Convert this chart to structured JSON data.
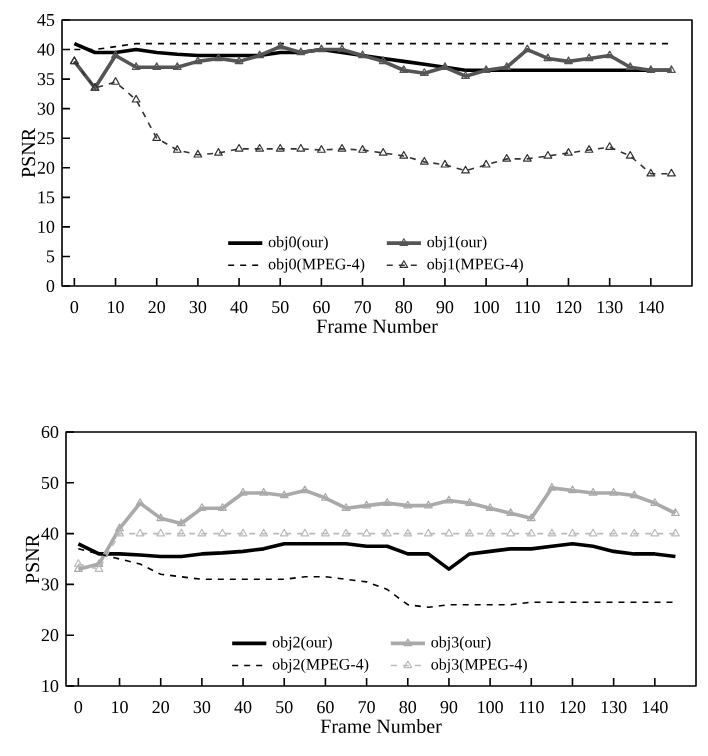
{
  "chart_data": [
    {
      "type": "line",
      "xlabel": "Frame Number",
      "ylabel": "PSNR",
      "xlim": [
        -3,
        150
      ],
      "xticks": [
        0,
        10,
        20,
        30,
        40,
        50,
        60,
        70,
        80,
        90,
        100,
        110,
        120,
        130,
        140
      ],
      "ylim": [
        0,
        45
      ],
      "yticks": [
        0,
        5,
        10,
        15,
        20,
        25,
        30,
        35,
        40,
        45
      ],
      "legend": "bottom",
      "x": [
        0,
        5,
        10,
        15,
        20,
        25,
        30,
        35,
        40,
        45,
        50,
        55,
        60,
        65,
        70,
        75,
        80,
        85,
        90,
        95,
        100,
        105,
        110,
        115,
        120,
        125,
        130,
        135,
        140,
        145
      ],
      "series": [
        {
          "name": "obj0(our)",
          "color": "#000000",
          "line_style": "solid",
          "marker": "none",
          "values": [
            41,
            39.5,
            39.5,
            40,
            39.5,
            39.2,
            39,
            39,
            39,
            39,
            39.5,
            39.5,
            40,
            39.5,
            39,
            38.5,
            38,
            37.5,
            37,
            36.5,
            36.5,
            36.5,
            36.5,
            36.5,
            36.5,
            36.5,
            36.5,
            36.5,
            36.5,
            36.5
          ]
        },
        {
          "name": "obj1(our)",
          "color": "#555555",
          "line_style": "solid",
          "marker": "triangle",
          "values": [
            38,
            33.5,
            39,
            37,
            37,
            37,
            38,
            38.5,
            38,
            39,
            40.5,
            39.5,
            40,
            40,
            39,
            38,
            36.5,
            36,
            37,
            35.5,
            36.5,
            37,
            40,
            38.5,
            38,
            38.5,
            39,
            37,
            36.5,
            36.5
          ]
        },
        {
          "name": "obj0(MPEG-4)",
          "color": "#000000",
          "line_style": "dashed",
          "marker": "none",
          "values": [
            40,
            40,
            40.5,
            41,
            41,
            41,
            41,
            41,
            41,
            41,
            41,
            41,
            41,
            41,
            41,
            41,
            41,
            41,
            41,
            41,
            41,
            41,
            41,
            41,
            41,
            41,
            41,
            41,
            41,
            41
          ]
        },
        {
          "name": "obj1(MPEG-4)",
          "color": "#333333",
          "line_style": "dashed",
          "marker": "triangle",
          "values": [
            38,
            33.5,
            34.5,
            31.5,
            25,
            23,
            22.2,
            22.5,
            23.2,
            23.2,
            23.2,
            23.2,
            23,
            23.2,
            23,
            22.5,
            22,
            21,
            20.5,
            19.5,
            20.5,
            21.5,
            21.5,
            22,
            22.5,
            23,
            23.5,
            22,
            19,
            19
          ]
        }
      ]
    },
    {
      "type": "line",
      "xlabel": "Frame Number",
      "ylabel": "PSNR",
      "xlim": [
        -3,
        150
      ],
      "xticks": [
        0,
        10,
        20,
        30,
        40,
        50,
        60,
        70,
        80,
        90,
        100,
        110,
        120,
        130,
        140
      ],
      "ylim": [
        10,
        60
      ],
      "yticks": [
        10,
        20,
        30,
        40,
        50,
        60
      ],
      "legend": "bottom",
      "x": [
        0,
        5,
        10,
        15,
        20,
        25,
        30,
        35,
        40,
        45,
        50,
        55,
        60,
        65,
        70,
        75,
        80,
        85,
        90,
        95,
        100,
        105,
        110,
        115,
        120,
        125,
        130,
        135,
        140,
        145
      ],
      "series": [
        {
          "name": "obj2(our)",
          "color": "#000000",
          "line_style": "solid",
          "marker": "none",
          "values": [
            38,
            36,
            36,
            35.8,
            35.5,
            35.5,
            36,
            36.2,
            36.5,
            37,
            38,
            38,
            38,
            38,
            37.5,
            37.5,
            36,
            36,
            33,
            36,
            36.5,
            37,
            37,
            37.5,
            38,
            37.5,
            36.5,
            36,
            36,
            35.5
          ]
        },
        {
          "name": "obj3(our)",
          "color": "#aaaaaa",
          "line_style": "solid",
          "marker": "triangle",
          "values": [
            33,
            34,
            41,
            46,
            43,
            42,
            45,
            45,
            48,
            48,
            47.5,
            48.5,
            47,
            45,
            45.5,
            46,
            45.5,
            45.5,
            46.5,
            46,
            45,
            44,
            43,
            49,
            48.5,
            48,
            48,
            47.5,
            46,
            44
          ]
        },
        {
          "name": "obj2(MPEG-4)",
          "color": "#000000",
          "line_style": "dashed",
          "marker": "none",
          "values": [
            37,
            36,
            35,
            34,
            32,
            31.5,
            31,
            31,
            31,
            31,
            31,
            31.5,
            31.5,
            31,
            30.5,
            29,
            26,
            25.5,
            26,
            26,
            26,
            26,
            26.5,
            26.5,
            26.5,
            26.5,
            26.5,
            26.5,
            26.5,
            26.5
          ]
        },
        {
          "name": "obj3(MPEG-4)",
          "color": "#bbbbbb",
          "line_style": "dashed",
          "marker": "triangle",
          "values": [
            34,
            33,
            40,
            40,
            40,
            40,
            40,
            40,
            40,
            40,
            40,
            40,
            40,
            40,
            40,
            40,
            40,
            40,
            40,
            40,
            40,
            40,
            40,
            40,
            40,
            40,
            40,
            40,
            40,
            40
          ]
        }
      ]
    }
  ]
}
